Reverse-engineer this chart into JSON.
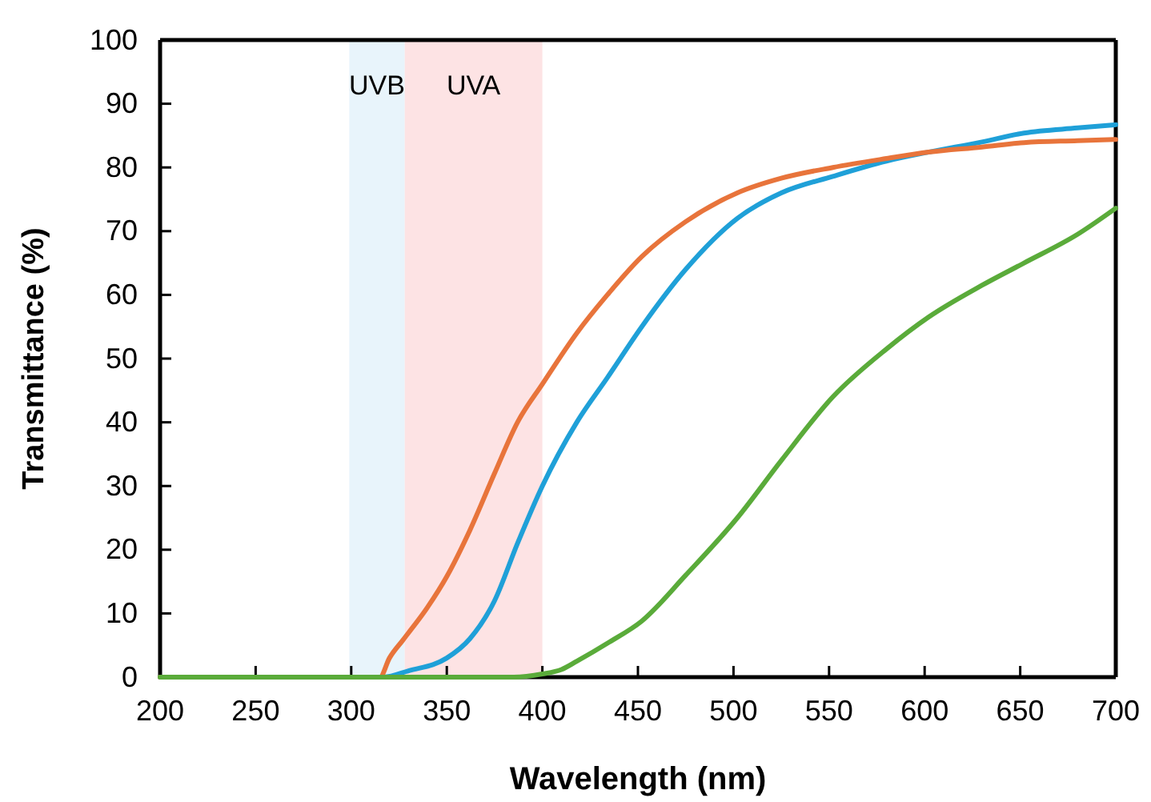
{
  "chart_data": {
    "type": "line",
    "xlabel": "Wavelength (nm)",
    "ylabel": "Transmittance (%)",
    "xlim": [
      200,
      700
    ],
    "xticks": [
      200,
      250,
      300,
      350,
      400,
      450,
      500,
      550,
      600,
      650,
      700
    ],
    "ylim": [
      0,
      100
    ],
    "yticks": [
      0,
      10,
      20,
      30,
      40,
      50,
      60,
      70,
      80,
      90,
      100
    ],
    "grid": false,
    "marker": "none",
    "line_style": "solid",
    "bands": [
      {
        "axis": "x",
        "from": 299,
        "to": 328,
        "label": "UVB",
        "color": "#e8f4fb"
      },
      {
        "axis": "x",
        "from": 328,
        "to": 400,
        "label": "UVA",
        "color": "#fde3e4"
      }
    ],
    "series": [
      {
        "color": "#1fa0d8",
        "x": [
          200,
          317,
          330,
          350,
          362,
          375,
          387,
          400,
          418,
          434,
          452,
          475,
          502,
          525,
          552,
          580,
          602,
          630,
          652,
          680,
          700
        ],
        "values": [
          0,
          0,
          1,
          3,
          6,
          12,
          21,
          30,
          40,
          47,
          55,
          64,
          72,
          76,
          78.6,
          81,
          82.4,
          84,
          85.4,
          86.2,
          86.7
        ]
      },
      {
        "color": "#e8743b",
        "x": [
          200,
          315,
          320,
          327,
          340,
          350,
          362,
          375,
          387,
          400,
          418,
          434,
          452,
          475,
          502,
          525,
          552,
          580,
          602,
          630,
          652,
          680,
          700
        ],
        "values": [
          0,
          0,
          3,
          5.8,
          11,
          15.8,
          23,
          32,
          40,
          46,
          54,
          60,
          66,
          71.5,
          76,
          78.3,
          80,
          81.4,
          82.4,
          83.2,
          83.9,
          84.2,
          84.4
        ]
      },
      {
        "color": "#5aab3a",
        "x": [
          200,
          385,
          400,
          410,
          418,
          435,
          452,
          475,
          502,
          525,
          552,
          580,
          602,
          630,
          652,
          680,
          700
        ],
        "values": [
          0,
          0,
          0.5,
          1.2,
          2.5,
          5.5,
          8.8,
          16,
          25,
          34,
          44,
          51.5,
          56.5,
          61.5,
          65,
          69.5,
          73.6
        ]
      }
    ]
  }
}
